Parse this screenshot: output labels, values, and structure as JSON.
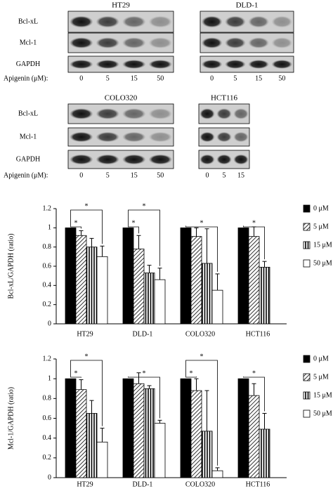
{
  "blots": [
    {
      "title": "HT29",
      "rows": [
        "Bcl-xL",
        "Mcl-1",
        "GAPDH"
      ],
      "lanes": [
        0,
        5,
        15,
        50
      ],
      "lane_label": "Apigenin (μM):"
    },
    {
      "title": "DLD-1",
      "lanes": [
        0,
        5,
        15,
        50
      ]
    },
    {
      "title": "COLO320",
      "rows": [
        "Bcl-xL",
        "Mcl-1",
        "GAPDH"
      ],
      "lanes": [
        0,
        5,
        15,
        50
      ],
      "lane_label": "Apigenin (μM):"
    },
    {
      "title": "HCT116",
      "lanes": [
        0,
        5,
        15
      ]
    }
  ],
  "chart_data": [
    {
      "type": "bar",
      "ylabel": "Bcl-xL/GAPDH (ratio)",
      "categories": [
        "HT29",
        "DLD-1",
        "COLO320",
        "HCT116"
      ],
      "ylim": [
        0,
        1.2
      ],
      "yticks": [
        0,
        0.2,
        0.4,
        0.6,
        0.8,
        1,
        1.2
      ],
      "legend": "right",
      "series": [
        {
          "name": "0 μM",
          "color": "#000000",
          "pattern": "solid",
          "values": [
            1,
            1,
            1,
            1
          ],
          "errors": [
            0,
            0,
            0,
            0
          ]
        },
        {
          "name": "5 μM",
          "color": "#000000",
          "pattern": "diagonal",
          "values": [
            0.92,
            0.78,
            0.91,
            0.91
          ],
          "errors": [
            0.05,
            0.14,
            0.09,
            0.1
          ]
        },
        {
          "name": "15 μM",
          "color": "#000000",
          "pattern": "vertical",
          "values": [
            0.8,
            0.53,
            0.63,
            0.59
          ],
          "errors": [
            0.09,
            0.08,
            0.36,
            0.06
          ]
        },
        {
          "name": "50 μM",
          "color": "#000000",
          "pattern": "none",
          "values": [
            0.7,
            0.46,
            0.35,
            null
          ],
          "errors": [
            0.11,
            0.12,
            0.17,
            null
          ]
        }
      ],
      "annotations": [
        {
          "label": "*",
          "category": "HT29",
          "series": [
            "0 μM",
            "5 μM"
          ]
        },
        {
          "label": "*",
          "category": "HT29",
          "series": [
            "0 μM",
            "50 μM"
          ]
        },
        {
          "label": "*",
          "category": "DLD-1",
          "series": [
            "0 μM",
            "5 μM"
          ]
        },
        {
          "label": "*",
          "category": "DLD-1",
          "series": [
            "0 μM",
            "50 μM"
          ]
        },
        {
          "label": "*",
          "category": "COLO320",
          "series": [
            "0 μM",
            "50 μM"
          ]
        },
        {
          "label": "*",
          "category": "HCT116",
          "series": [
            "0 μM",
            "15 μM"
          ]
        }
      ]
    },
    {
      "type": "bar",
      "ylabel": "Mcl-1/GAPDH (ratio)",
      "categories": [
        "HT29",
        "DLD-1",
        "COLO320",
        "HCT116"
      ],
      "ylim": [
        0,
        1.2
      ],
      "yticks": [
        0,
        0.2,
        0.4,
        0.6,
        0.8,
        1,
        1.2
      ],
      "legend": "right",
      "series": [
        {
          "name": "0 μM",
          "color": "#000000",
          "pattern": "solid",
          "values": [
            1,
            1,
            1,
            1
          ],
          "errors": [
            0,
            0,
            0,
            0
          ]
        },
        {
          "name": "5 μM",
          "color": "#000000",
          "pattern": "diagonal",
          "values": [
            0.89,
            0.95,
            0.88,
            0.83
          ],
          "errors": [
            0.1,
            0.11,
            0.12,
            0.12
          ]
        },
        {
          "name": "15 μM",
          "color": "#000000",
          "pattern": "vertical",
          "values": [
            0.65,
            0.9,
            0.47,
            0.49
          ],
          "errors": [
            0.13,
            0.03,
            0.41,
            0.16
          ]
        },
        {
          "name": "50 μM",
          "color": "#000000",
          "pattern": "none",
          "values": [
            0.36,
            0.55,
            0.07,
            null
          ],
          "errors": [
            0.14,
            0.03,
            0.03,
            null
          ]
        }
      ],
      "annotations": [
        {
          "label": "*",
          "category": "HT29",
          "series": [
            "0 μM",
            "5 μM"
          ]
        },
        {
          "label": "*",
          "category": "HT29",
          "series": [
            "0 μM",
            "50 μM"
          ]
        },
        {
          "label": "*",
          "category": "DLD-1",
          "series": [
            "0 μM",
            "50 μM"
          ]
        },
        {
          "label": "*",
          "category": "COLO320",
          "series": [
            "0 μM",
            "5 μM"
          ]
        },
        {
          "label": "*",
          "category": "COLO320",
          "series": [
            "0 μM",
            "50 μM"
          ]
        },
        {
          "label": "*",
          "category": "HCT116",
          "series": [
            "0 μM",
            "15 μM"
          ]
        }
      ]
    }
  ]
}
